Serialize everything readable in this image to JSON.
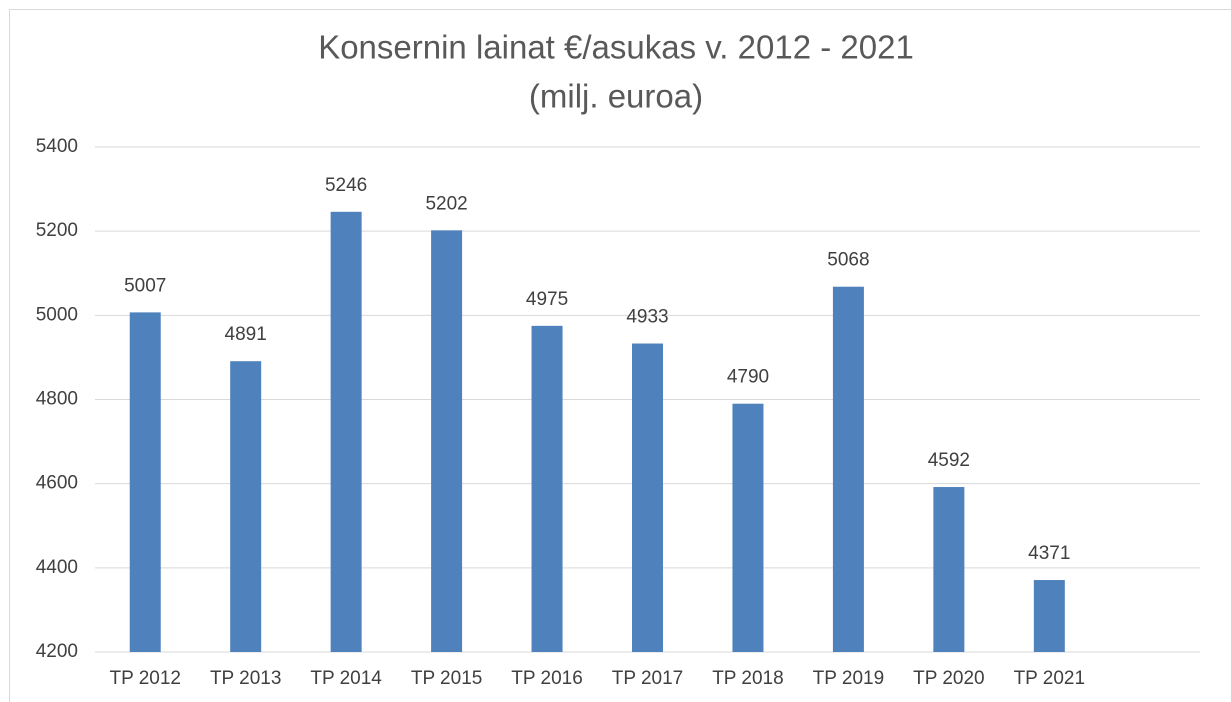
{
  "chart_data": {
    "type": "bar",
    "title": "Konsernin lainat €/asukas v. 2012 - 2021",
    "subtitle": "(milj. euroa)",
    "categories": [
      "TP 2012",
      "TP 2013",
      "TP 2014",
      "TP 2015",
      "TP 2016",
      "TP 2017",
      "TP 2018",
      "TP 2019",
      "TP 2020",
      "TP 2021"
    ],
    "values": [
      5007,
      4891,
      5246,
      5202,
      4975,
      4933,
      4790,
      5068,
      4592,
      4371
    ],
    "color": "#4f81bd",
    "ylim": [
      4200,
      5400
    ],
    "yticks": [
      4200,
      4400,
      4600,
      4800,
      5000,
      5200,
      5400
    ],
    "grid": true
  }
}
